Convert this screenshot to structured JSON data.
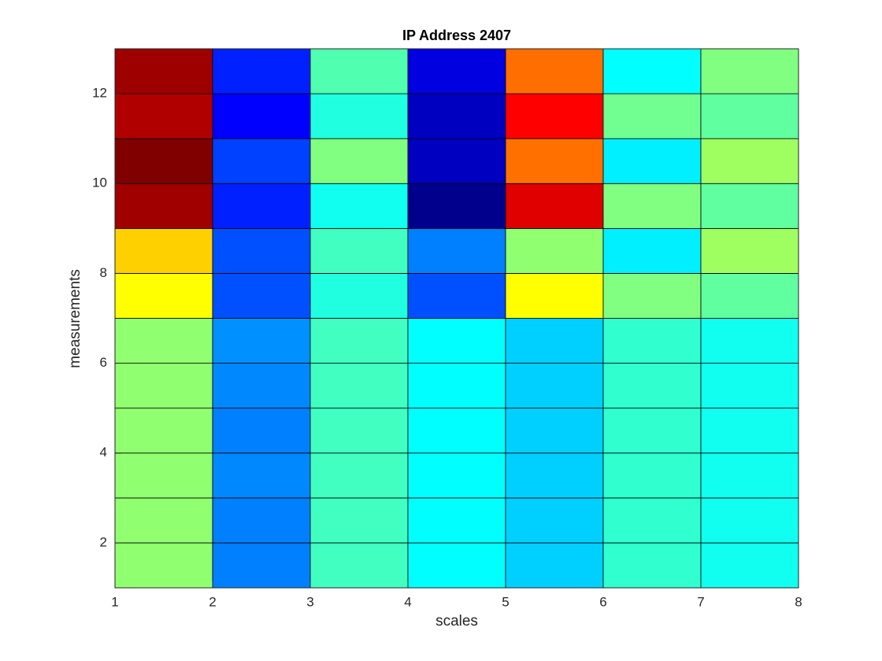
{
  "chart_data": {
    "type": "heatmap",
    "title": "IP Address 2407",
    "xlabel": "scales",
    "ylabel": "measurements",
    "xlim": [
      1,
      8
    ],
    "ylim": [
      1,
      13
    ],
    "xticks": [
      1,
      2,
      3,
      4,
      5,
      6,
      7,
      8
    ],
    "yticks": [
      2,
      4,
      6,
      8,
      10,
      12
    ],
    "cell_colors": [
      [
        "#90ff70",
        "#0080ff",
        "#40ffc0",
        "#00ffff",
        "#00d0ff",
        "#30ffd0",
        "#10fff0"
      ],
      [
        "#90ff70",
        "#0080ff",
        "#40ffc0",
        "#00ffff",
        "#00d0ff",
        "#30ffd0",
        "#10fff0"
      ],
      [
        "#90ff70",
        "#0088ff",
        "#40ffc0",
        "#00ffff",
        "#00d0ff",
        "#30ffd0",
        "#10fff0"
      ],
      [
        "#90ff70",
        "#0080ff",
        "#40ffc0",
        "#00ffff",
        "#00d0ff",
        "#30ffd0",
        "#10fff0"
      ],
      [
        "#90ff70",
        "#0088ff",
        "#40ffc0",
        "#00ffff",
        "#00d0ff",
        "#30ffd0",
        "#10fff0"
      ],
      [
        "#90ff70",
        "#0090ff",
        "#40ffc0",
        "#00ffff",
        "#00d0ff",
        "#30ffd0",
        "#10fff0"
      ],
      [
        "#ffff00",
        "#0050ff",
        "#20ffe0",
        "#0050ff",
        "#ffff00",
        "#80ff80",
        "#60ffa0"
      ],
      [
        "#ffd000",
        "#0050ff",
        "#40ffc0",
        "#0080ff",
        "#90ff70",
        "#00f0ff",
        "#a0ff60"
      ],
      [
        "#a00000",
        "#0020ff",
        "#10fff0",
        "#00008c",
        "#e00000",
        "#80ff80",
        "#60ffa0"
      ],
      [
        "#800000",
        "#0040ff",
        "#80ff80",
        "#0000c0",
        "#ff7000",
        "#00f0ff",
        "#a0ff60"
      ],
      [
        "#b00000",
        "#0000ff",
        "#20ffe0",
        "#0000c0",
        "#ff0000",
        "#70ff90",
        "#60ffa0"
      ],
      [
        "#9e0000",
        "#0020ff",
        "#50ffb0",
        "#0000e0",
        "#ff6e00",
        "#00ffff",
        "#80ff80"
      ]
    ]
  }
}
